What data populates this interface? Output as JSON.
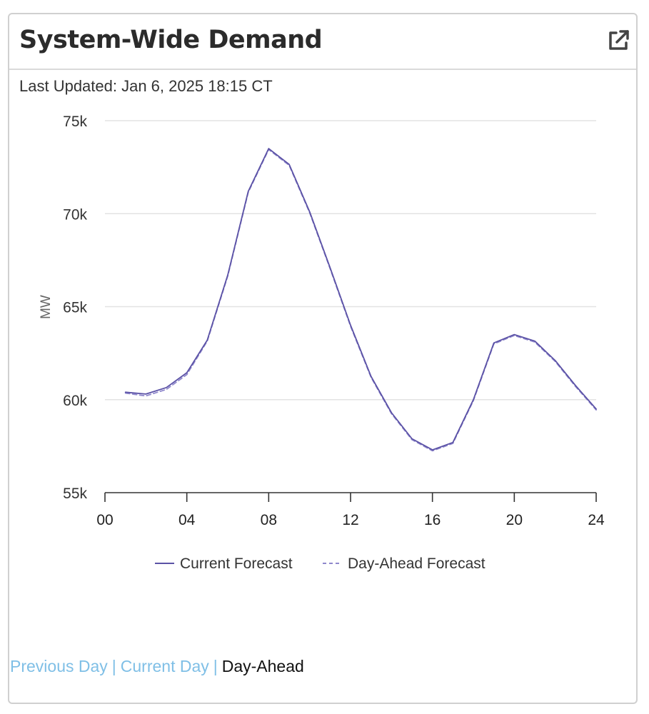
{
  "card": {
    "title": "System-Wide Demand",
    "external_link_icon": "external-link-icon",
    "last_updated": "Last Updated: Jan 6, 2025 18:15 CT"
  },
  "footer": {
    "links": [
      "Previous Day",
      "Current Day",
      "Day-Ahead"
    ],
    "separator": "|",
    "active": "Day-Ahead",
    "link_color": "#7fbfe6"
  },
  "chart_data": {
    "type": "line",
    "ylabel": "MW",
    "xlabel": "",
    "xlim": [
      0,
      24
    ],
    "ylim": [
      55000,
      75000
    ],
    "x_ticks": [
      0,
      4,
      8,
      12,
      16,
      20,
      24
    ],
    "x_tick_labels": [
      "00",
      "04",
      "08",
      "12",
      "16",
      "20",
      "24"
    ],
    "y_ticks": [
      55000,
      60000,
      65000,
      70000,
      75000
    ],
    "y_tick_labels": [
      "55k",
      "60k",
      "65k",
      "70k",
      "75k"
    ],
    "grid": "horizontal",
    "legend": "bottom",
    "x": [
      1,
      2,
      3,
      4,
      5,
      6,
      7,
      8,
      9,
      10,
      11,
      12,
      13,
      14,
      15,
      16,
      17,
      18,
      19,
      20,
      21,
      22,
      23,
      24
    ],
    "series": [
      {
        "name": "Current Forecast",
        "style": "solid",
        "color": "#5b52a6",
        "values": [
          60400,
          60300,
          60650,
          61450,
          63200,
          66700,
          71200,
          73500,
          72650,
          70100,
          67100,
          64000,
          61250,
          59300,
          57900,
          57300,
          57700,
          60000,
          63050,
          63500,
          63150,
          62100,
          60750,
          59500
        ]
      },
      {
        "name": "Day-Ahead Forecast",
        "style": "dashed",
        "color": "#8f88cc",
        "values": [
          60350,
          60200,
          60550,
          61350,
          63150,
          66650,
          71150,
          73450,
          72600,
          70050,
          67050,
          63950,
          61200,
          59250,
          57850,
          57250,
          57650,
          59950,
          63000,
          63450,
          63100,
          62050,
          60700,
          59450
        ]
      }
    ]
  }
}
